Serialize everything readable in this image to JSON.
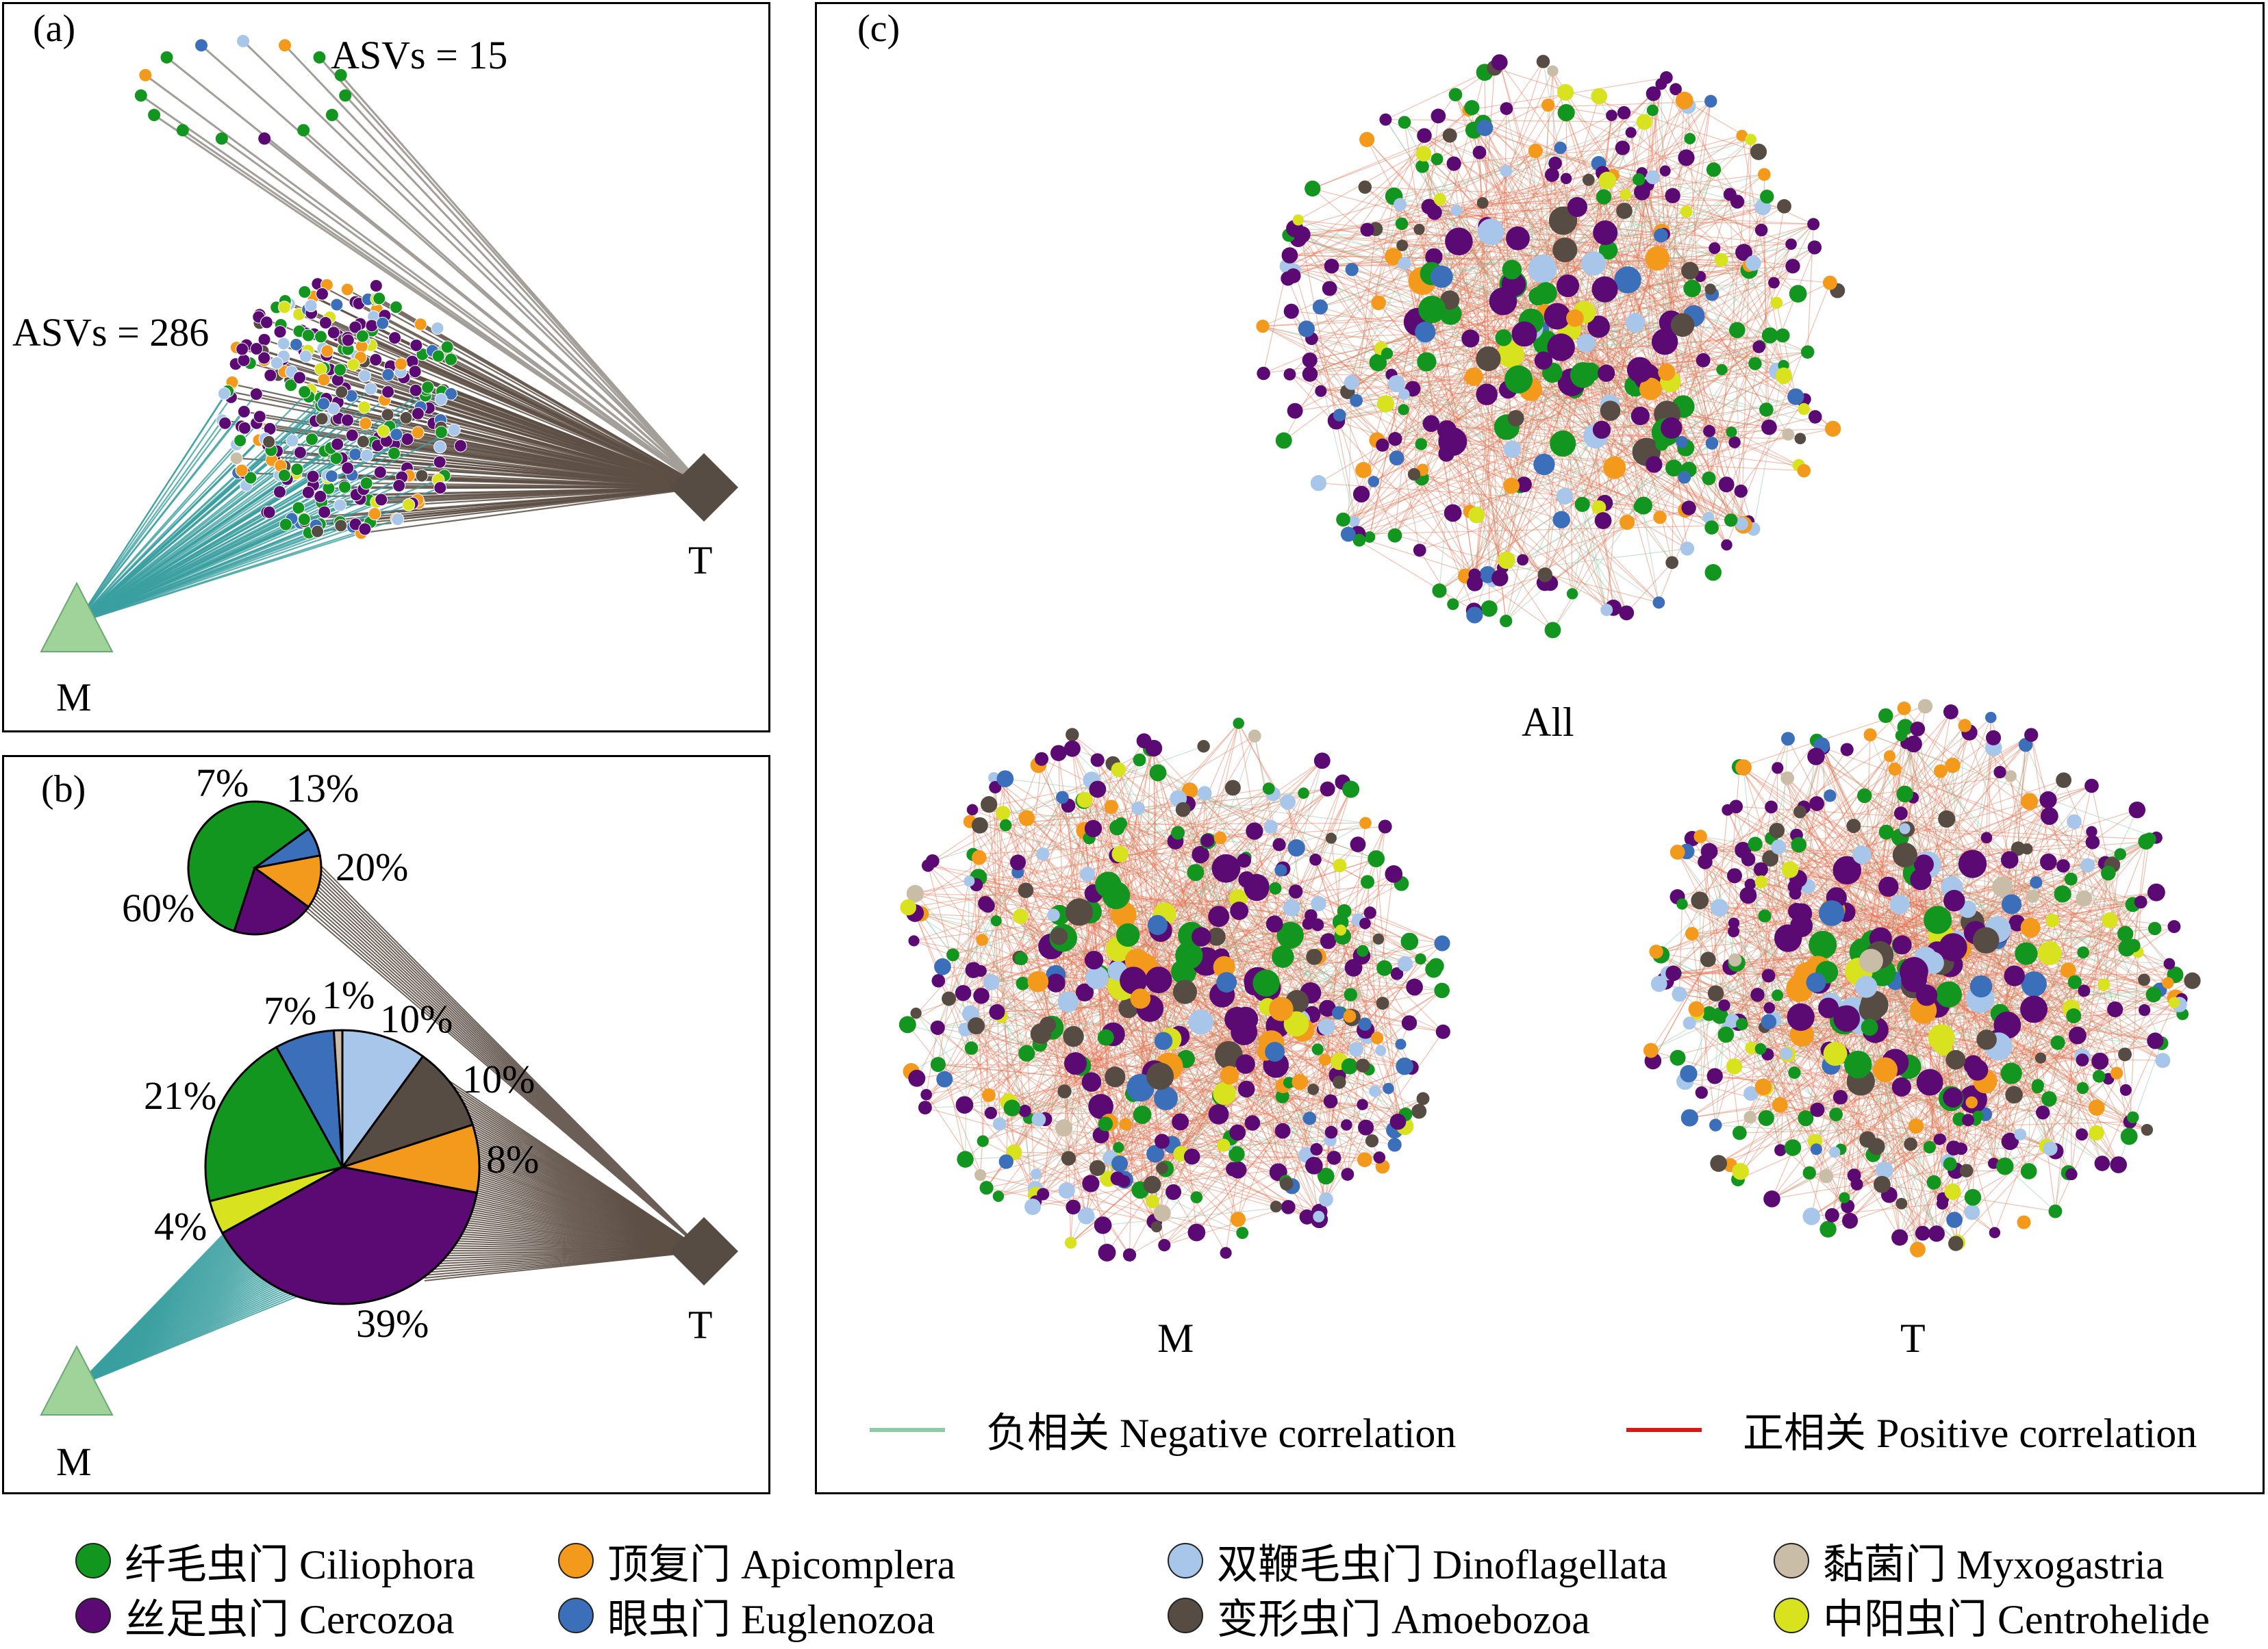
{
  "panels": {
    "a": {
      "label": "(a)",
      "top_group": "ASVs = 15",
      "bottom_group": "ASVs = 286",
      "node_M": "M",
      "node_T": "T"
    },
    "b": {
      "label": "(b)",
      "node_M": "M",
      "node_T": "T",
      "top_pie_labels": [
        "60%",
        "7%",
        "13%",
        "20%"
      ],
      "bottom_pie_labels": [
        "21%",
        "7%",
        "1%",
        "10%",
        "10%",
        "8%",
        "4%",
        "39%"
      ]
    },
    "c": {
      "label": "(c)",
      "networks": [
        "All",
        "M",
        "T"
      ],
      "negative_label": "负相关 Negative correlation",
      "positive_label": "正相关 Positive correlation",
      "negative_color": "#8fc9a8",
      "positive_color": "#d7191c"
    }
  },
  "legend": [
    {
      "label": "纤毛虫门 Ciliophora",
      "color": "#12961f"
    },
    {
      "label": "顶复门 Apicomplera",
      "color": "#f39a1c"
    },
    {
      "label": "双鞭毛虫门 Dinoflagellata",
      "color": "#a8c6ea"
    },
    {
      "label": "黏菌门 Myxogastria",
      "color": "#c9bda7"
    },
    {
      "label": "丝足虫门 Cercozoa",
      "color": "#5a0a72"
    },
    {
      "label": "眼虫门 Euglenozoa",
      "color": "#3b6fba"
    },
    {
      "label": "变形虫门 Amoebozoa",
      "color": "#574c44"
    },
    {
      "label": "中阳虫门 Centrohelide",
      "color": "#d9e21e"
    }
  ],
  "chart_data": [
    {
      "type": "pie",
      "title": "",
      "categories": [
        "Ciliophora",
        "Euglenozoa",
        "Apicomplera",
        "Cercozoa"
      ],
      "values": [
        60,
        7,
        13,
        20
      ]
    },
    {
      "type": "pie",
      "title": "",
      "categories": [
        "Dinoflagellata",
        "Amoebozoa",
        "Apicomplera",
        "Cercozoa",
        "Centrohelide",
        "Ciliophora",
        "Euglenozoa",
        "Myxogastria"
      ],
      "values": [
        10,
        10,
        8,
        39,
        4,
        21,
        7,
        1
      ]
    }
  ]
}
